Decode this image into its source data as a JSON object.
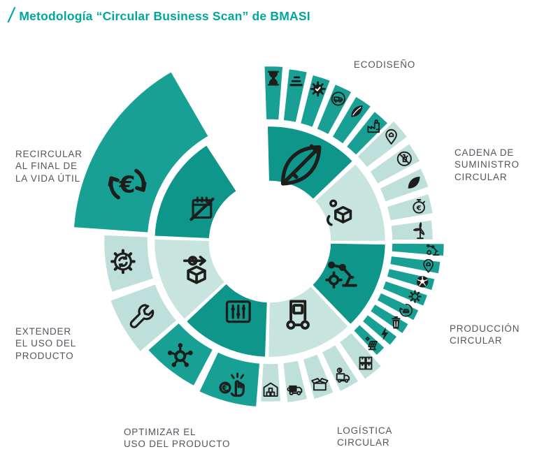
{
  "title": {
    "slash": "/",
    "text": "Metodología “Circular Business Scan” de BMASI"
  },
  "colors": {
    "title_teal": "#00A79D",
    "label_gray": "#54545E",
    "inner_dark": "#0E968A",
    "outer_dark": "#17A093",
    "inner_light": "#C8E4DF",
    "outer_light": "#BEDFDA",
    "icon_black": "#1D1D1B",
    "background": "#FFFFFF"
  },
  "wheel": {
    "sectors": [
      {
        "id": "ecodiseno",
        "label": "ECODISEÑO",
        "scheme": "dark",
        "inner_icon": "leaf-pencil-icon",
        "outer_icons": [
          "hourglass-icon",
          "materials-layers-icon",
          "gear-check-icon",
          "eco-truck-icon",
          "leaf-lines-icon",
          "factory-icon"
        ]
      },
      {
        "id": "cadena",
        "label": "CADENA DE\nSUMINISTRO\nCIRCULAR",
        "scheme": "light",
        "inner_icon": "hand-package-icon",
        "outer_icons": [
          "location-pin-icon",
          "no-pesticide-icon",
          "leaf-solid-icon",
          "stopwatch-euro-icon",
          "wind-turbine-icon"
        ]
      },
      {
        "id": "produccion",
        "label": "PRODUCCIÓN\nCIRCULAR",
        "scheme": "dark",
        "inner_icon": "robot-arm-icon",
        "outer_icons": [
          "robot-arm-small-icon",
          "location-pin-icon",
          "football-icon",
          "gear-icon",
          "car-recycle-icon",
          "trash-bin-icon",
          "lightning-icon",
          "solar-panel-icon"
        ]
      },
      {
        "id": "logistica",
        "label": "LOGÍSTICA\nCIRCULAR",
        "scheme": "light",
        "inner_icon": "hand-truck-icon",
        "outer_icons": [
          "stacked-boxes-icon",
          "delivery-time-icon",
          "open-box-icon",
          "electric-truck-icon",
          "warehouse-icon"
        ]
      },
      {
        "id": "optimizar",
        "label": "OPTIMIZAR EL\nUSO DEL PRODUCTO",
        "scheme": "dark",
        "inner_icon": "sliders-icon",
        "outer_icons": [
          "pay-per-use-icon",
          "molecule-icon"
        ]
      },
      {
        "id": "extender",
        "label": "EXTENDER\nEL USO DEL\nPRODUCTO",
        "scheme": "light",
        "inner_icon": "product-life-icon",
        "outer_icons": [
          "wrench-icon",
          "gear-refresh-icon"
        ]
      },
      {
        "id": "recircular",
        "label": "RECIRCULAR\nAL FINAL DE\nLA VIDA ÚTIL",
        "scheme": "dark",
        "inner_icon": "calendar-crossed-icon",
        "outer_icons": [
          "euro-recycle-icon"
        ]
      }
    ]
  }
}
